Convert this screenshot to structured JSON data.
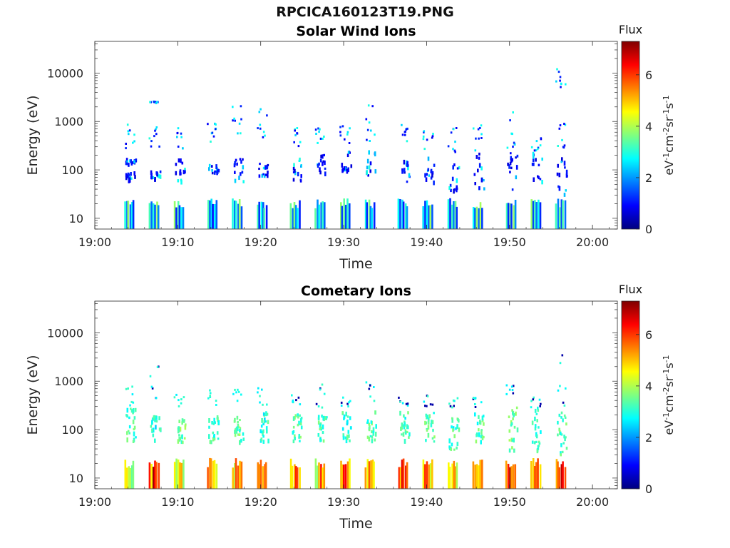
{
  "figure": {
    "title": "RPCICA160123T19.PNG"
  },
  "chart_data": [
    {
      "type": "heatmap",
      "title": "Solar Wind Ions",
      "xlabel": "Time",
      "ylabel": "Energy (eV)",
      "x_ticks": [
        "19:00",
        "19:10",
        "19:20",
        "19:30",
        "19:40",
        "19:50",
        "20:00"
      ],
      "x_range": [
        "19:00",
        "20:03"
      ],
      "y_scale": "log",
      "y_ticks": [
        10,
        100,
        1000,
        10000
      ],
      "y_range": [
        6,
        45000
      ],
      "colorbar": {
        "label": "Flux",
        "unit_label": "eV-1cm-2sr-1s-1",
        "ticks": [
          0,
          2,
          4,
          6
        ],
        "range": [
          0,
          7.3
        ],
        "colormap": "jet"
      },
      "sweeps": [
        {
          "time": "19:04",
          "low_band": [
            13,
            22,
            15
          ],
          "mid": [
            [
              60,
              100
            ],
            [
              140,
              180
            ]
          ],
          "high": [
            [
              250,
              1000
            ]
          ],
          "scatter_flux": 1.5
        },
        {
          "time": "19:07",
          "low_band": [
            12,
            20,
            15
          ],
          "mid": [
            [
              70,
              110
            ]
          ],
          "high": [
            [
              300,
              1200
            ],
            [
              2500,
              2700
            ]
          ],
          "scatter_flux": 1.0
        },
        {
          "time": "19:10",
          "low_band": [
            12,
            20,
            15
          ],
          "mid": [
            [
              60,
              180
            ]
          ],
          "high": [
            [
              250,
              800
            ]
          ],
          "scatter_flux": 1.2
        },
        {
          "time": "19:14",
          "low_band": [
            12,
            20,
            15
          ],
          "mid": [
            [
              90,
              140
            ]
          ],
          "high": [
            [
              400,
              1000
            ]
          ],
          "scatter_flux": 1.8
        },
        {
          "time": "19:17",
          "low_band": [
            12,
            20,
            15
          ],
          "mid": [
            [
              60,
              180
            ]
          ],
          "high": [
            [
              500,
              2500
            ]
          ],
          "scatter_flux": 0.9
        },
        {
          "time": "19:20",
          "low_band": [
            12,
            18,
            15
          ],
          "mid": [
            [
              80,
              150
            ]
          ],
          "high": [
            [
              300,
              2200
            ]
          ],
          "scatter_flux": 1.6
        },
        {
          "time": "19:24",
          "low_band": [
            12,
            20,
            15
          ],
          "mid": [
            [
              60,
              180
            ]
          ],
          "high": [
            [
              300,
              1100
            ]
          ],
          "scatter_flux": 1.3
        },
        {
          "time": "19:27",
          "low_band": [
            12,
            20,
            15
          ],
          "mid": [
            [
              90,
              220
            ]
          ],
          "high": [
            [
              300,
              800
            ]
          ],
          "scatter_flux": 2.0
        },
        {
          "time": "19:30",
          "low_band": [
            12,
            20,
            15
          ],
          "mid": [
            [
              100,
              260
            ]
          ],
          "high": [
            [
              350,
              900
            ]
          ],
          "scatter_flux": 1.4
        },
        {
          "time": "19:33",
          "low_band": [
            12,
            20,
            15
          ],
          "mid": [
            [
              80,
              260
            ]
          ],
          "high": [
            [
              300,
              2300
            ]
          ],
          "scatter_flux": 1.7
        },
        {
          "time": "19:37",
          "low_band": [
            12,
            20,
            15
          ],
          "mid": [
            [
              60,
              200
            ]
          ],
          "high": [
            [
              300,
              900
            ]
          ],
          "scatter_flux": 1.1
        },
        {
          "time": "19:40",
          "low_band": [
            12,
            20,
            15
          ],
          "mid": [
            [
              60,
              250
            ]
          ],
          "high": [
            [
              250,
              700
            ]
          ],
          "scatter_flux": 1.5
        },
        {
          "time": "19:43",
          "low_band": [
            12,
            18,
            15
          ],
          "mid": [
            [
              40,
              150
            ]
          ],
          "high": [
            [
              200,
              800
            ]
          ],
          "scatter_flux": 1.8
        },
        {
          "time": "19:46",
          "low_band": [
            12,
            18,
            15
          ],
          "mid": [
            [
              40,
              250
            ]
          ],
          "high": [
            [
              200,
              1000
            ]
          ],
          "scatter_flux": 1.0
        },
        {
          "time": "19:50",
          "low_band": [
            12,
            20,
            15
          ],
          "mid": [
            [
              40,
              300
            ]
          ],
          "high": [
            [
              300,
              2200
            ]
          ],
          "scatter_flux": 1.3
        },
        {
          "time": "19:53",
          "low_band": [
            12,
            18,
            15
          ],
          "mid": [
            [
              60,
              250
            ]
          ],
          "high": [
            [
              250,
              800
            ]
          ],
          "scatter_flux": 1.6
        },
        {
          "time": "19:56",
          "low_band": [
            12,
            20,
            15
          ],
          "mid": [
            [
              30,
              200
            ]
          ],
          "high": [
            [
              300,
              1000
            ],
            [
              5000,
              14000
            ]
          ],
          "scatter_flux": 1.2
        }
      ]
    },
    {
      "type": "heatmap",
      "title": "Cometary Ions",
      "xlabel": "Time",
      "ylabel": "Energy (eV)",
      "x_ticks": [
        "19:00",
        "19:10",
        "19:20",
        "19:30",
        "19:40",
        "19:50",
        "20:00"
      ],
      "x_range": [
        "19:00",
        "20:03"
      ],
      "y_scale": "log",
      "y_ticks": [
        10,
        100,
        1000,
        10000
      ],
      "y_range": [
        6,
        45000
      ],
      "colorbar": {
        "label": "Flux",
        "unit_label": "eV-1cm-2sr-1s-1",
        "ticks": [
          0,
          2,
          4,
          6
        ],
        "range": [
          0,
          7.3
        ],
        "colormap": "jet"
      },
      "sweeps": [
        {
          "time": "19:04",
          "low_band": [
            14,
            4.6
          ],
          "mid": [
            [
              60,
              300
            ]
          ],
          "high": [
            [
              300,
              1000
            ]
          ],
          "scatter_flux": 3.0
        },
        {
          "time": "19:07",
          "low_band": [
            14,
            5.8
          ],
          "mid": [
            [
              60,
              200
            ]
          ],
          "high": [
            [
              400,
              2700
            ]
          ],
          "scatter_flux": 2.8
        },
        {
          "time": "19:10",
          "low_band": [
            14,
            5.0
          ],
          "mid": [
            [
              50,
              180
            ]
          ],
          "high": [
            [
              300,
              600
            ]
          ],
          "scatter_flux": 3.3
        },
        {
          "time": "19:14",
          "low_band": [
            14,
            5.4
          ],
          "mid": [
            [
              60,
              200
            ]
          ],
          "high": [
            [
              300,
              700
            ]
          ],
          "scatter_flux": 3.0
        },
        {
          "time": "19:17",
          "low_band": [
            14,
            5.2
          ],
          "mid": [
            [
              60,
              220
            ]
          ],
          "high": [
            [
              300,
              700
            ]
          ],
          "scatter_flux": 3.3
        },
        {
          "time": "19:20",
          "low_band": [
            14,
            5.6
          ],
          "mid": [
            [
              60,
              250
            ]
          ],
          "high": [
            [
              300,
              900
            ]
          ],
          "scatter_flux": 2.9
        },
        {
          "time": "19:24",
          "low_band": [
            14,
            5.6
          ],
          "mid": [
            [
              60,
              220
            ]
          ],
          "high": [
            [
              300,
              800
            ]
          ],
          "scatter_flux": 3.1
        },
        {
          "time": "19:27",
          "low_band": [
            14,
            5.2
          ],
          "mid": [
            [
              60,
              220
            ]
          ],
          "high": [
            [
              300,
              900
            ]
          ],
          "scatter_flux": 3.0
        },
        {
          "time": "19:30",
          "low_band": [
            14,
            5.4
          ],
          "mid": [
            [
              60,
              250
            ]
          ],
          "high": [
            [
              300,
              700
            ]
          ],
          "scatter_flux": 2.9
        },
        {
          "time": "19:33",
          "low_band": [
            14,
            4.8
          ],
          "mid": [
            [
              60,
              250
            ]
          ],
          "high": [
            [
              400,
              1200
            ]
          ],
          "scatter_flux": 3.1
        },
        {
          "time": "19:37",
          "low_band": [
            14,
            6.0
          ],
          "mid": [
            [
              60,
              250
            ]
          ],
          "high": [
            [
              300,
              500
            ]
          ],
          "scatter_flux": 3.0
        },
        {
          "time": "19:40",
          "low_band": [
            14,
            5.6
          ],
          "mid": [
            [
              60,
              250
            ]
          ],
          "high": [
            [
              300,
              600
            ]
          ],
          "scatter_flux": 3.2
        },
        {
          "time": "19:43",
          "low_band": [
            14,
            5.0
          ],
          "mid": [
            [
              40,
              200
            ]
          ],
          "high": [
            [
              300,
              500
            ]
          ],
          "scatter_flux": 3.0
        },
        {
          "time": "19:46",
          "low_band": [
            14,
            5.2
          ],
          "mid": [
            [
              60,
              250
            ]
          ],
          "high": [
            [
              300,
              500
            ]
          ],
          "scatter_flux": 3.1
        },
        {
          "time": "19:50",
          "low_band": [
            14,
            5.8
          ],
          "mid": [
            [
              40,
              300
            ]
          ],
          "high": [
            [
              400,
              900
            ]
          ],
          "scatter_flux": 3.3
        },
        {
          "time": "19:53",
          "low_band": [
            14,
            5.6
          ],
          "mid": [
            [
              40,
              300
            ]
          ],
          "high": [
            [
              300,
              500
            ]
          ],
          "scatter_flux": 3.0
        },
        {
          "time": "19:56",
          "low_band": [
            14,
            6.2
          ],
          "mid": [
            [
              30,
              250
            ]
          ],
          "high": [
            [
              300,
              5000
            ]
          ],
          "scatter_flux": 3.1
        }
      ]
    }
  ]
}
